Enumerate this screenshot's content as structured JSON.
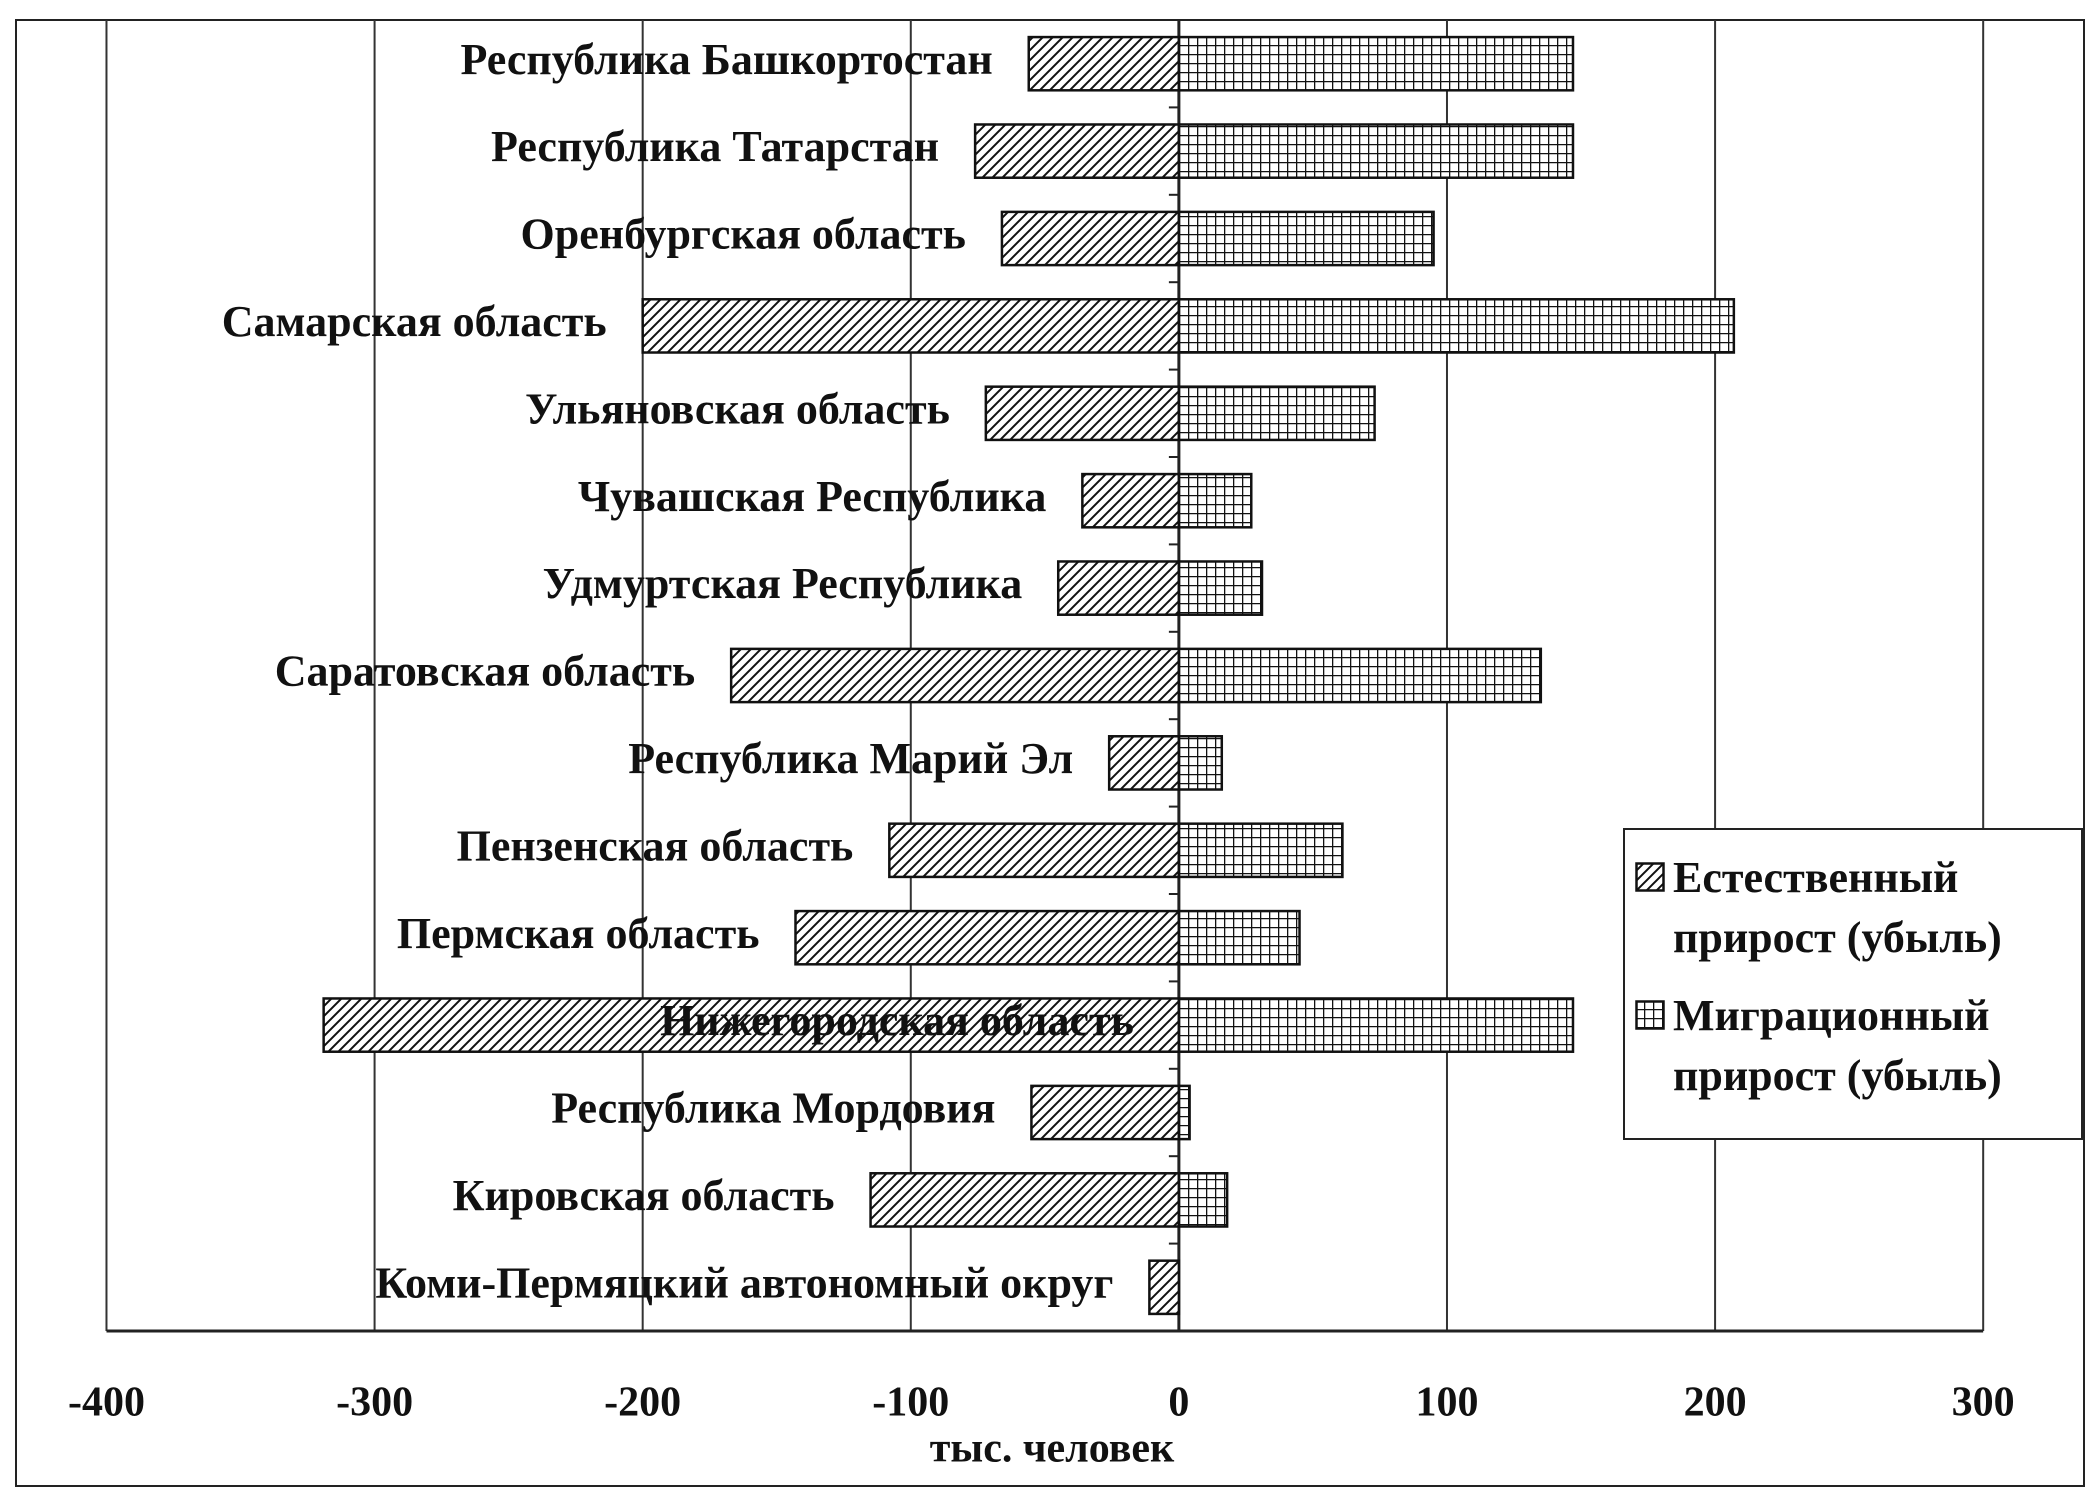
{
  "chart_data": {
    "type": "bar",
    "orientation": "horizontal",
    "x_label": "тыс. человек",
    "categories": [
      "Республика Башкортостан",
      "Республика Татарстан",
      "Оренбургская область",
      "Самарская область",
      "Ульяновская область",
      "Чувашская Республика",
      "Удмуртская Республика",
      "Саратовская область",
      "Республика Марий Эл",
      "Пензенская область",
      "Пермская область",
      "Нижегородская область",
      "Республика Мордовия",
      "Кировская область",
      "Коми-Пермяцкий автономный округ"
    ],
    "series": [
      {
        "name": "Естественный прирост (убыль)",
        "color": "#111111",
        "values": [
          -56,
          -76,
          -66,
          -200,
          -72,
          -36,
          -45,
          -167,
          -26,
          -108,
          -143,
          -319,
          -55,
          -115,
          -11
        ]
      },
      {
        "name": "Миграционный прирост (убыль)",
        "color": "#111111",
        "values": [
          147,
          147,
          95,
          207,
          73,
          27,
          31,
          135,
          16,
          61,
          45,
          147,
          4,
          18,
          0
        ]
      }
    ],
    "xlim": [
      -400,
      300
    ],
    "xticks": [
      -400,
      -300,
      -200,
      -100,
      0,
      100,
      200,
      300
    ],
    "grid": true,
    "legend": "right"
  }
}
